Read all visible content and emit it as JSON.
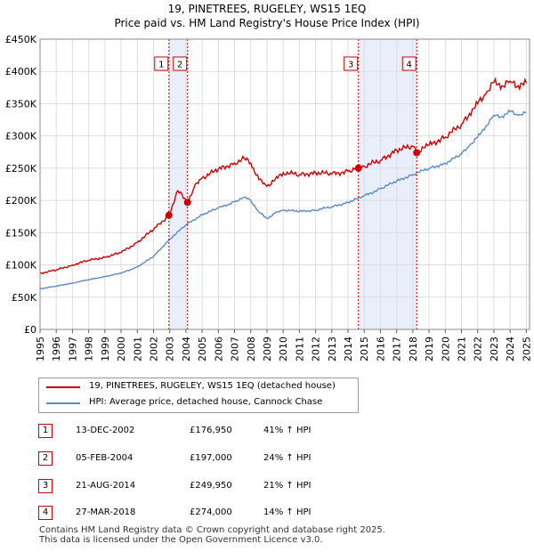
{
  "chart_data": {
    "type": "line",
    "title": "19, PINETREES, RUGELEY, WS15 1EQ",
    "subtitle": "Price paid vs. HM Land Registry's House Price Index (HPI)",
    "xlabel": "",
    "ylabel": "",
    "xlim": [
      1995,
      2025.2
    ],
    "ylim": [
      0,
      450000
    ],
    "x_ticks": [
      "1995",
      "1996",
      "1997",
      "1998",
      "1999",
      "2000",
      "2001",
      "2002",
      "2003",
      "2004",
      "2005",
      "2006",
      "2007",
      "2008",
      "2009",
      "2010",
      "2011",
      "2012",
      "2013",
      "2014",
      "2015",
      "2016",
      "2017",
      "2018",
      "2019",
      "2020",
      "2021",
      "2022",
      "2023",
      "2024",
      "2025"
    ],
    "y_ticks": [
      {
        "value": 0,
        "label": "£0"
      },
      {
        "value": 50000,
        "label": "£50K"
      },
      {
        "value": 100000,
        "label": "£100K"
      },
      {
        "value": 150000,
        "label": "£150K"
      },
      {
        "value": 200000,
        "label": "£200K"
      },
      {
        "value": 250000,
        "label": "£250K"
      },
      {
        "value": 300000,
        "label": "£300K"
      },
      {
        "value": 350000,
        "label": "£350K"
      },
      {
        "value": 400000,
        "label": "£400K"
      },
      {
        "value": 450000,
        "label": "£450K"
      }
    ],
    "grid": true,
    "shaded_ranges": [
      [
        2002.95,
        2004.1
      ],
      [
        2014.64,
        2018.24
      ]
    ],
    "series": [
      {
        "name": "19, PINETREES, RUGELEY, WS15 1EQ (detached house)",
        "color": "#cc0000",
        "x": [
          1995,
          1996,
          1997,
          1998,
          1999,
          2000,
          2001,
          2002,
          2002.95,
          2003.5,
          2004.1,
          2004.5,
          2005,
          2006,
          2007,
          2007.6,
          2008,
          2008.5,
          2009,
          2009.5,
          2010,
          2011,
          2012,
          2013,
          2014,
          2014.64,
          2015,
          2016,
          2017,
          2018,
          2018.24,
          2019,
          2020,
          2021,
          2021.5,
          2022,
          2022.5,
          2023,
          2023.5,
          2024,
          2024.5,
          2025
        ],
        "values": [
          87000,
          92000,
          100000,
          107000,
          112000,
          119000,
          135000,
          155000,
          176950,
          215000,
          197000,
          220000,
          235000,
          248000,
          258000,
          265000,
          258000,
          232000,
          222000,
          232000,
          243000,
          240000,
          243000,
          241000,
          245000,
          249950,
          253000,
          262000,
          278000,
          284000,
          274000,
          286000,
          298000,
          318000,
          335000,
          350000,
          365000,
          383000,
          378000,
          385000,
          378000,
          382000
        ]
      },
      {
        "name": "HPI: Average price, detached house, Cannock Chase",
        "color": "#5b8ac6",
        "x": [
          1995,
          1996,
          1997,
          1998,
          1999,
          2000,
          2001,
          2002,
          2003,
          2004,
          2005,
          2006,
          2007,
          2007.6,
          2008,
          2008.5,
          2009,
          2009.5,
          2010,
          2011,
          2012,
          2013,
          2014,
          2015,
          2016,
          2017,
          2018,
          2019,
          2020,
          2021,
          2021.5,
          2022,
          2022.5,
          2023,
          2023.5,
          2024,
          2024.5,
          2025
        ],
        "values": [
          63000,
          67000,
          72000,
          77000,
          82000,
          87000,
          97000,
          113000,
          140000,
          162000,
          178000,
          188000,
          198000,
          205000,
          200000,
          182000,
          172000,
          180000,
          185000,
          183000,
          185000,
          190000,
          197000,
          207000,
          218000,
          230000,
          240000,
          250000,
          257000,
          272000,
          285000,
          298000,
          315000,
          332000,
          330000,
          338000,
          332000,
          336000
        ]
      }
    ],
    "sales": [
      {
        "num": "1",
        "date": "13-DEC-2002",
        "x": 2002.95,
        "price": 176950,
        "price_label": "£176,950",
        "hpi": "41% ↑ HPI"
      },
      {
        "num": "2",
        "date": "05-FEB-2004",
        "x": 2004.1,
        "price": 197000,
        "price_label": "£197,000",
        "hpi": "24% ↑ HPI"
      },
      {
        "num": "3",
        "date": "21-AUG-2014",
        "x": 2014.64,
        "price": 249950,
        "price_label": "£249,950",
        "hpi": "21% ↑ HPI"
      },
      {
        "num": "4",
        "date": "27-MAR-2018",
        "x": 2018.24,
        "price": 274000,
        "price_label": "£274,000",
        "hpi": "14% ↑ HPI"
      }
    ]
  },
  "legend": {
    "property_label": "19, PINETREES, RUGELEY, WS15 1EQ (detached house)",
    "hpi_label": "HPI: Average price, detached house, Cannock Chase"
  },
  "footer": {
    "line1": "Contains HM Land Registry data © Crown copyright and database right 2025.",
    "line2": "This data is licensed under the Open Government Licence v3.0."
  }
}
